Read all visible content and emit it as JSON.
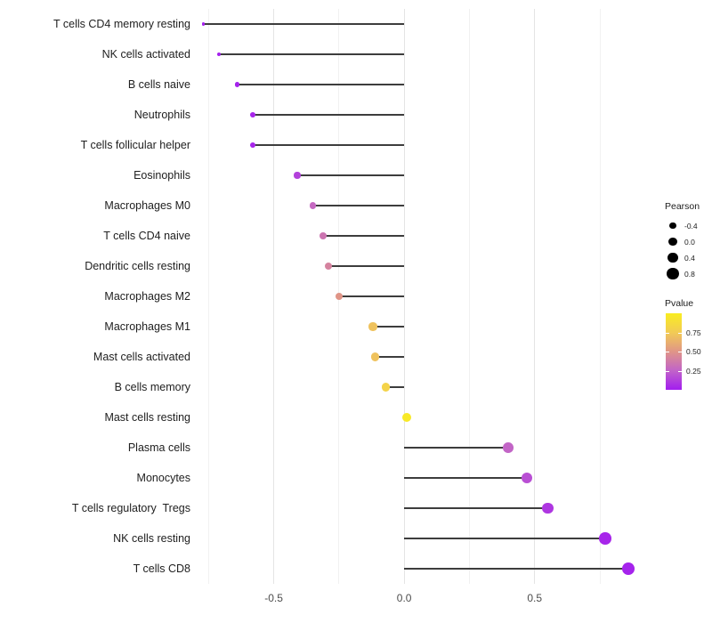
{
  "chart_data": {
    "type": "lollipop",
    "orientation": "horizontal",
    "title": "",
    "xlabel": "",
    "ylabel": "",
    "baseline": 0,
    "categories": [
      "T cells CD4 memory resting",
      "NK cells activated",
      "B cells naive",
      "Neutrophils",
      "T cells follicular helper",
      "Eosinophils",
      "Macrophages M0",
      "T cells CD4 naive",
      "Dendritic cells resting",
      "Macrophages M2",
      "Macrophages M1",
      "Mast cells activated",
      "B cells memory",
      "Mast cells resting",
      "Plasma cells",
      "Monocytes",
      "T cells regulatory  Tregs",
      "NK cells resting",
      "T cells CD8"
    ],
    "series": [
      {
        "name": "Pearson",
        "values": [
          -0.77,
          -0.71,
          -0.64,
          -0.58,
          -0.58,
          -0.41,
          -0.35,
          -0.31,
          -0.29,
          -0.25,
          -0.12,
          -0.11,
          -0.07,
          0.01,
          0.4,
          0.47,
          0.55,
          0.77,
          0.86
        ]
      },
      {
        "name": "Pvalue",
        "values": [
          0.01,
          0.01,
          0.02,
          0.03,
          0.03,
          0.13,
          0.28,
          0.34,
          0.41,
          0.5,
          0.71,
          0.71,
          0.81,
          0.97,
          0.26,
          0.18,
          0.09,
          0.03,
          0.02
        ]
      }
    ],
    "x_axis": {
      "range": [
        -0.785,
        0.9
      ],
      "ticks_major": [
        -0.5,
        0.0,
        0.5
      ],
      "tick_labels": [
        "-0.5",
        "0.0",
        "0.5"
      ],
      "ticks_minor": [
        -0.75,
        -0.25,
        0.25,
        0.75
      ],
      "grid": true
    },
    "y_axis": {
      "grid": false
    }
  },
  "legend": {
    "position": "right",
    "size": {
      "title": "Pearson",
      "entries": [
        {
          "label": "-0.4",
          "value": -0.4
        },
        {
          "label": "0.0",
          "value": 0.0
        },
        {
          "label": "0.4",
          "value": 0.4
        },
        {
          "label": "0.8",
          "value": 0.8
        }
      ]
    },
    "color": {
      "title": "Pvalue",
      "bar_range": [
        0,
        1
      ],
      "ticks": [
        {
          "label": "0.75",
          "value": 0.75
        },
        {
          "label": "0.50",
          "value": 0.5
        },
        {
          "label": "0.25",
          "value": 0.25
        }
      ],
      "stops": [
        {
          "p": 0.0,
          "color": "#A31DEF"
        },
        {
          "p": 0.25,
          "color": "#C163C9"
        },
        {
          "p": 0.5,
          "color": "#E09587"
        },
        {
          "p": 0.75,
          "color": "#F2CB55"
        },
        {
          "p": 1.0,
          "color": "#F9ED21"
        }
      ]
    }
  },
  "colors": {
    "background": "#ffffff",
    "stem": "#3d3d3d",
    "grid_major": "#e4e4e4",
    "grid_minor": "#f1f1f1",
    "category_text": "#212121",
    "axis_text": "#4d4d4d",
    "legend_dot": "#000000"
  }
}
